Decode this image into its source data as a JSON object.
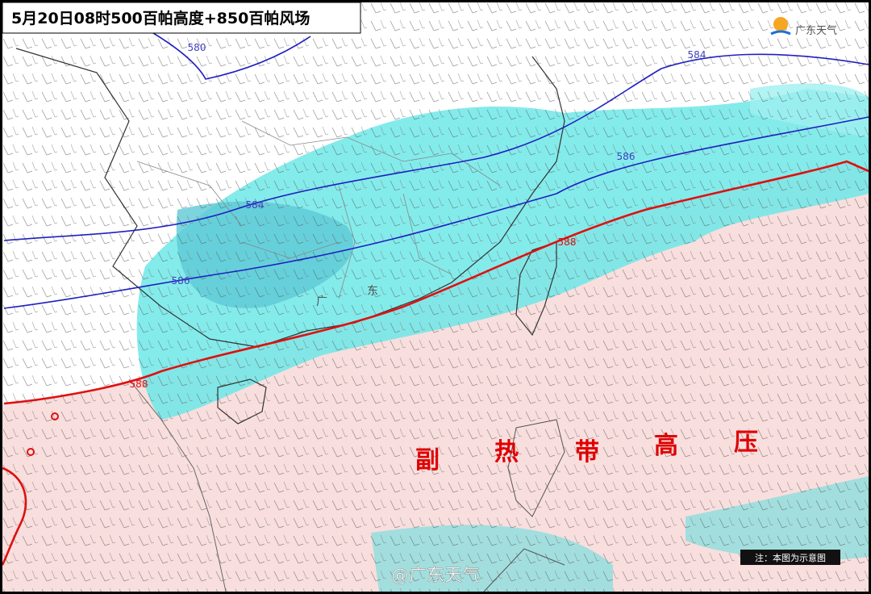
{
  "header": {
    "title": "5月20日08时500百帕高度+850百帕风场"
  },
  "logo": {
    "text": "广东天气"
  },
  "contour_labels": [
    "580",
    "584",
    "584",
    "586",
    "586",
    "588",
    "588"
  ],
  "map_labels": [
    "广",
    "东"
  ],
  "annotation": {
    "chars": [
      "副",
      "热",
      "带",
      "高",
      "压"
    ]
  },
  "note": "注：本图为示意图",
  "watermark": "@广东天气"
}
